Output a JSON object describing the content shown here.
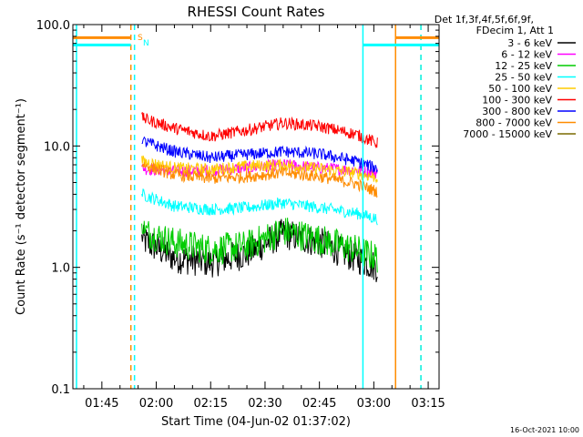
{
  "chart_data": {
    "type": "line",
    "title": "RHESSI Count Rates",
    "xlabel": "Start Time (04-Jun-02 01:37:02)",
    "ylabel": "Count Rate (s⁻¹ detector segment⁻¹)",
    "yscale": "log",
    "ylim": [
      0.1,
      100
    ],
    "yticks": [
      {
        "value": 0.1,
        "label": "0.1"
      },
      {
        "value": 1,
        "label": "1.0"
      },
      {
        "value": 10,
        "label": "10.0"
      },
      {
        "value": 100,
        "label": "100.0"
      }
    ],
    "xlim": [
      "01:37",
      "03:18"
    ],
    "xticks": [
      "01:45",
      "02:00",
      "02:15",
      "02:30",
      "02:45",
      "03:00",
      "03:15"
    ],
    "legend_header": [
      "Det 1f,3f,4f,5f,6f,9f,",
      "FDecim 1, Att 1"
    ],
    "legend_position": "top-right outside",
    "series": [
      {
        "name": "3 - 6 keV",
        "color": "#000000",
        "x": [
          "01:56",
          "02:05",
          "02:15",
          "02:25",
          "02:35",
          "02:45",
          "02:55",
          "03:01"
        ],
        "values": [
          1.7,
          1.2,
          1.1,
          1.3,
          1.9,
          1.6,
          1.2,
          1.0
        ]
      },
      {
        "name": "6 - 12 keV",
        "color": "#ff00ff",
        "x": [
          "01:56",
          "02:05",
          "02:15",
          "02:25",
          "02:35",
          "02:45",
          "02:55",
          "03:01"
        ],
        "values": [
          6.5,
          6.2,
          6.3,
          6.6,
          7.0,
          6.6,
          6.3,
          6.0
        ]
      },
      {
        "name": "12 - 25 keV",
        "color": "#00cc00",
        "x": [
          "01:56",
          "02:05",
          "02:15",
          "02:25",
          "02:35",
          "02:45",
          "02:55",
          "03:01"
        ],
        "values": [
          2.0,
          1.6,
          1.4,
          1.5,
          2.0,
          1.7,
          1.4,
          1.2
        ]
      },
      {
        "name": "25 - 50 keV",
        "color": "#00ffff",
        "x": [
          "01:56",
          "02:05",
          "02:15",
          "02:25",
          "02:35",
          "02:45",
          "02:55",
          "03:01"
        ],
        "values": [
          4.0,
          3.2,
          3.0,
          3.1,
          3.4,
          3.1,
          2.8,
          2.5
        ]
      },
      {
        "name": "50 - 100 keV",
        "color": "#ffcc00",
        "x": [
          "01:56",
          "02:05",
          "02:15",
          "02:25",
          "02:35",
          "02:45",
          "02:55",
          "03:01"
        ],
        "values": [
          7.5,
          6.6,
          6.4,
          6.8,
          7.0,
          6.5,
          6.0,
          5.5
        ]
      },
      {
        "name": "100 - 300 keV",
        "color": "#ff0000",
        "x": [
          "01:56",
          "02:05",
          "02:15",
          "02:25",
          "02:35",
          "02:45",
          "02:55",
          "03:01"
        ],
        "values": [
          17.0,
          14.0,
          12.0,
          13.5,
          15.5,
          14.5,
          12.5,
          10.5
        ]
      },
      {
        "name": "300 - 800 keV",
        "color": "#0000ff",
        "x": [
          "01:56",
          "02:05",
          "02:15",
          "02:25",
          "02:35",
          "02:45",
          "02:55",
          "03:01"
        ],
        "values": [
          11.0,
          9.0,
          8.0,
          8.5,
          9.0,
          8.6,
          7.5,
          6.5
        ]
      },
      {
        "name": "800 - 7000 keV",
        "color": "#ff8c00",
        "x": [
          "01:56",
          "02:05",
          "02:15",
          "02:25",
          "02:35",
          "02:45",
          "02:55",
          "03:01"
        ],
        "values": [
          7.0,
          5.8,
          5.4,
          5.6,
          6.0,
          5.6,
          4.9,
          4.2
        ]
      },
      {
        "name": "7000 - 15000 keV",
        "color": "#7a6a00",
        "x": [],
        "values": []
      }
    ],
    "annotations": [
      {
        "text": "S",
        "color": "#ff8c00"
      },
      {
        "text": "N",
        "color": "#00ffff"
      }
    ],
    "attenuator_bars": [
      {
        "color": "#ff8c00",
        "x": [
          "01:37",
          "01:53"
        ],
        "y": 78
      },
      {
        "color": "#00ffff",
        "x": [
          "01:37",
          "01:53"
        ],
        "y": 68
      },
      {
        "color": "#00ffff",
        "x": [
          "02:57",
          "03:18"
        ],
        "y": 68
      },
      {
        "color": "#ff8c00",
        "x": [
          "03:06",
          "03:18"
        ],
        "y": 78
      }
    ],
    "vertical_markers": [
      {
        "x": "01:38",
        "color": "#00ffff",
        "style": "solid"
      },
      {
        "x": "01:53",
        "color": "#ff8c00",
        "style": "dashed"
      },
      {
        "x": "01:54",
        "color": "#00ffff",
        "style": "dashed"
      },
      {
        "x": "02:57",
        "color": "#00ffff",
        "style": "solid"
      },
      {
        "x": "03:06",
        "color": "#ff8c00",
        "style": "solid"
      },
      {
        "x": "03:13",
        "color": "#ff8c00",
        "style": "dashed"
      },
      {
        "x": "03:13",
        "color": "#00ffff",
        "style": "dashed"
      }
    ],
    "grid": false
  },
  "footer_timestamp": "16-Oct-2021 10:00"
}
